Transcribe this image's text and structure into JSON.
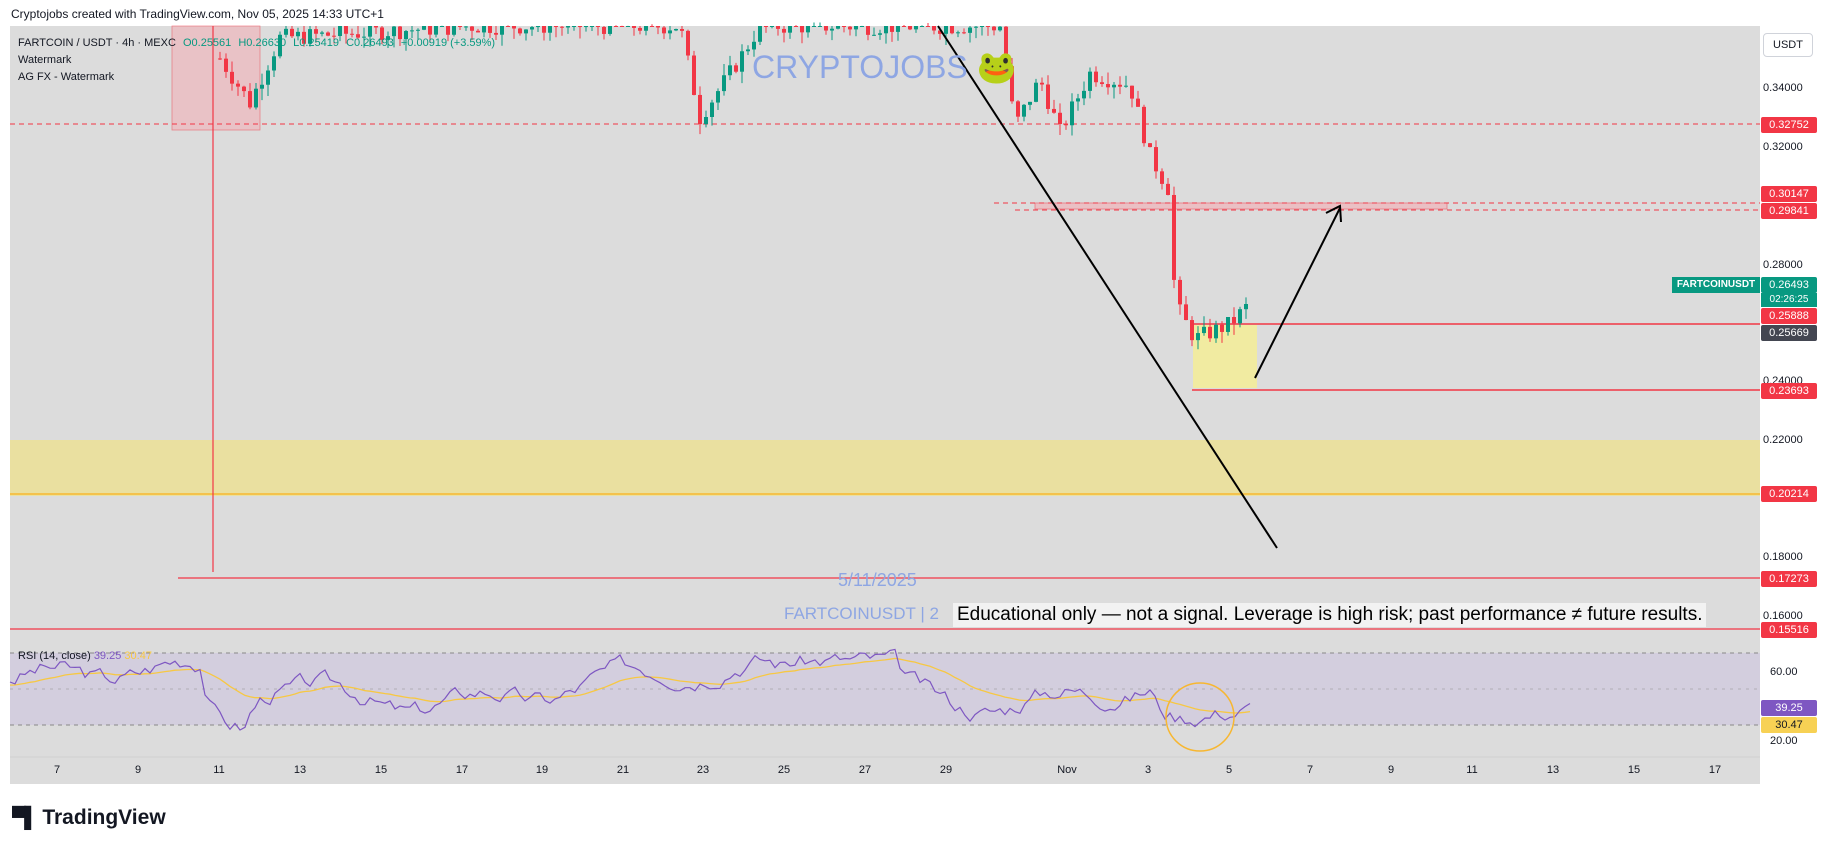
{
  "header": {
    "attribution": "Cryptojobs created with TradingView.com, Nov 05, 2025 14:33 UTC+1"
  },
  "legend": {
    "symbol": "FARTCOIN / USDT · 4h · MEXC",
    "open": "O0.25561",
    "high": "H0.26630",
    "low": "L0.25419",
    "close": "C0.26493",
    "change": "+0.00919 (+3.59%)",
    "indicator1": "Watermark",
    "indicator2": "AG FX - Watermark"
  },
  "currency_button": "USDT",
  "watermark_text": "CRYPTOJOBS 🐸",
  "date_watermark": "5/11/2025",
  "symbol_watermark": "FARTCOINUSDT | 2",
  "disclaimer": "Educational only — not a signal. Leverage is high risk; past performance ≠ future results.",
  "footer_brand": "TradingView",
  "price_axis": [
    "0.34000",
    "0.32000",
    "0.28000",
    "0.24000",
    "0.22000",
    "0.18000",
    "0.16000"
  ],
  "price_tags": {
    "t1": "0.32752",
    "t2": "0.30147",
    "t3": "0.29841",
    "current": "0.26493",
    "countdown": "02:26:25",
    "t4": "0.25888",
    "t5": "0.25669",
    "t6": "0.23693",
    "t7": "0.20214",
    "t8": "0.17273",
    "t9": "0.15516",
    "symbol_label": "FARTCOINUSDT"
  },
  "time_axis": [
    "7",
    "9",
    "11",
    "13",
    "15",
    "17",
    "19",
    "21",
    "23",
    "25",
    "27",
    "29",
    "Nov",
    "3",
    "5",
    "7",
    "9",
    "11",
    "13",
    "15",
    "17"
  ],
  "rsi": {
    "label": "RSI (14, close)",
    "value": "39.25",
    "ma_value": "30.47",
    "ma_label_hidden": "30.47",
    "axis": [
      "60.00",
      "20.00"
    ]
  },
  "colors": {
    "up": "#089981",
    "down": "#f23645",
    "rsi": "#7e57c2",
    "rsi_ma": "#f7c843",
    "zone": "#f5e08c"
  },
  "chart_data": {
    "type": "candlestick",
    "title": "FARTCOIN / USDT · 4h · MEXC",
    "y_range": [
      0.148,
      0.356
    ],
    "horizontal_levels": [
      0.32752,
      0.30147,
      0.29841,
      0.25888,
      0.25669,
      0.23693,
      0.20214,
      0.17273,
      0.15516
    ],
    "demand_zone": [
      0.2032,
      0.222
    ],
    "consolidation_box": [
      0.238,
      0.26
    ],
    "last_close": 0.26493,
    "projection_target": 0.299,
    "rsi_last": 39.25,
    "rsi_ma_last": 30.47
  }
}
